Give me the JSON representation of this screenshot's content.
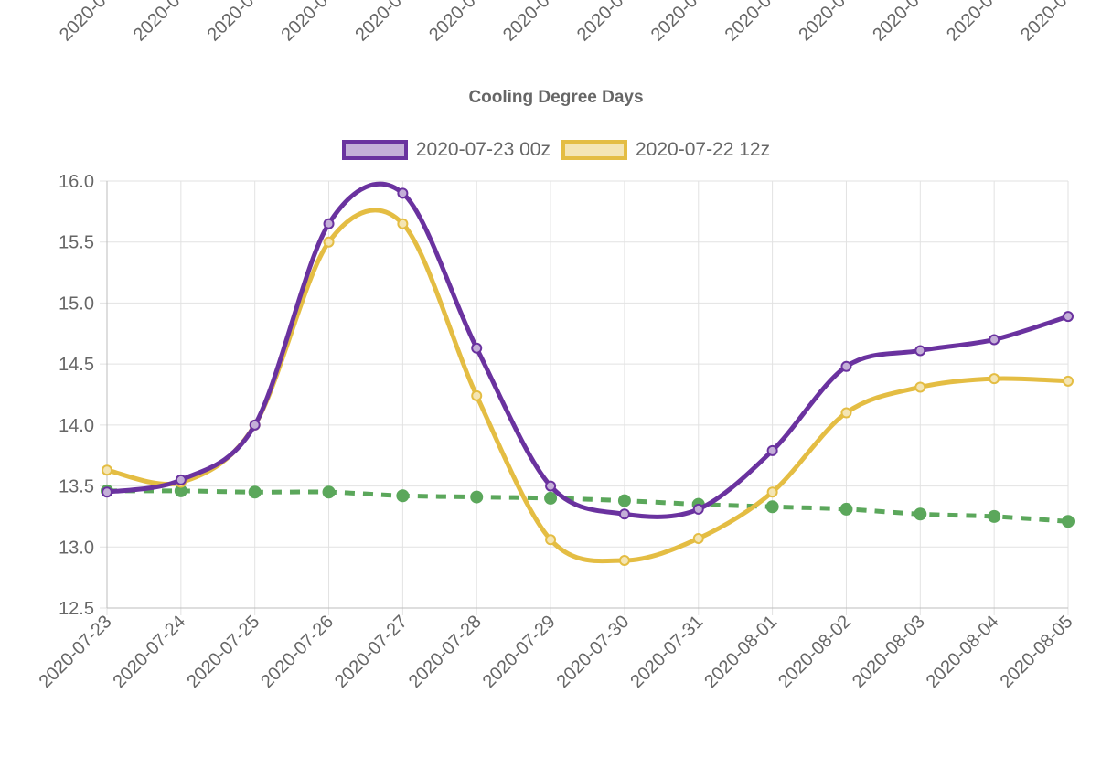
{
  "chart_data": {
    "type": "line",
    "title": "Cooling Degree Days",
    "xlabel": "",
    "ylabel": "",
    "categories": [
      "2020-07-23",
      "2020-07-24",
      "2020-07-25",
      "2020-07-26",
      "2020-07-27",
      "2020-07-28",
      "2020-07-29",
      "2020-07-30",
      "2020-07-31",
      "2020-08-01",
      "2020-08-02",
      "2020-08-03",
      "2020-08-04",
      "2020-08-05"
    ],
    "ylim": [
      12.5,
      16.0
    ],
    "yticks": [
      "12.5",
      "13.0",
      "13.5",
      "14.0",
      "14.5",
      "15.0",
      "15.5",
      "16.0"
    ],
    "grid": true,
    "legend_position": "top",
    "series": [
      {
        "name": "2020-07-23 00z",
        "color": "#6a329f",
        "fill": "#c4afd8",
        "style": "solid",
        "values": [
          13.45,
          13.55,
          14.0,
          15.65,
          15.9,
          14.63,
          13.5,
          13.27,
          13.31,
          13.79,
          14.48,
          14.61,
          14.7,
          14.89
        ]
      },
      {
        "name": "2020-07-22 12z",
        "color": "#e4bd43",
        "fill": "#f4e5b4",
        "style": "solid",
        "values": [
          13.63,
          13.53,
          14.0,
          15.5,
          15.65,
          14.24,
          13.06,
          12.89,
          13.07,
          13.45,
          14.1,
          14.31,
          14.38,
          14.36
        ]
      },
      {
        "color": "#5ba75b",
        "style": "dashed",
        "values": [
          13.46,
          13.46,
          13.45,
          13.45,
          13.42,
          13.41,
          13.4,
          13.38,
          13.35,
          13.33,
          13.31,
          13.27,
          13.25,
          13.21
        ]
      }
    ]
  },
  "top_chart_fragment": {
    "tick_labels": [
      "2020-0",
      "2020-0",
      "2020-0",
      "2020-0",
      "2020-0",
      "2020-0",
      "2020-0",
      "2020-0",
      "2020-0",
      "2020-0",
      "2020-0",
      "2020-0",
      "2020-0",
      "2020-0"
    ]
  }
}
